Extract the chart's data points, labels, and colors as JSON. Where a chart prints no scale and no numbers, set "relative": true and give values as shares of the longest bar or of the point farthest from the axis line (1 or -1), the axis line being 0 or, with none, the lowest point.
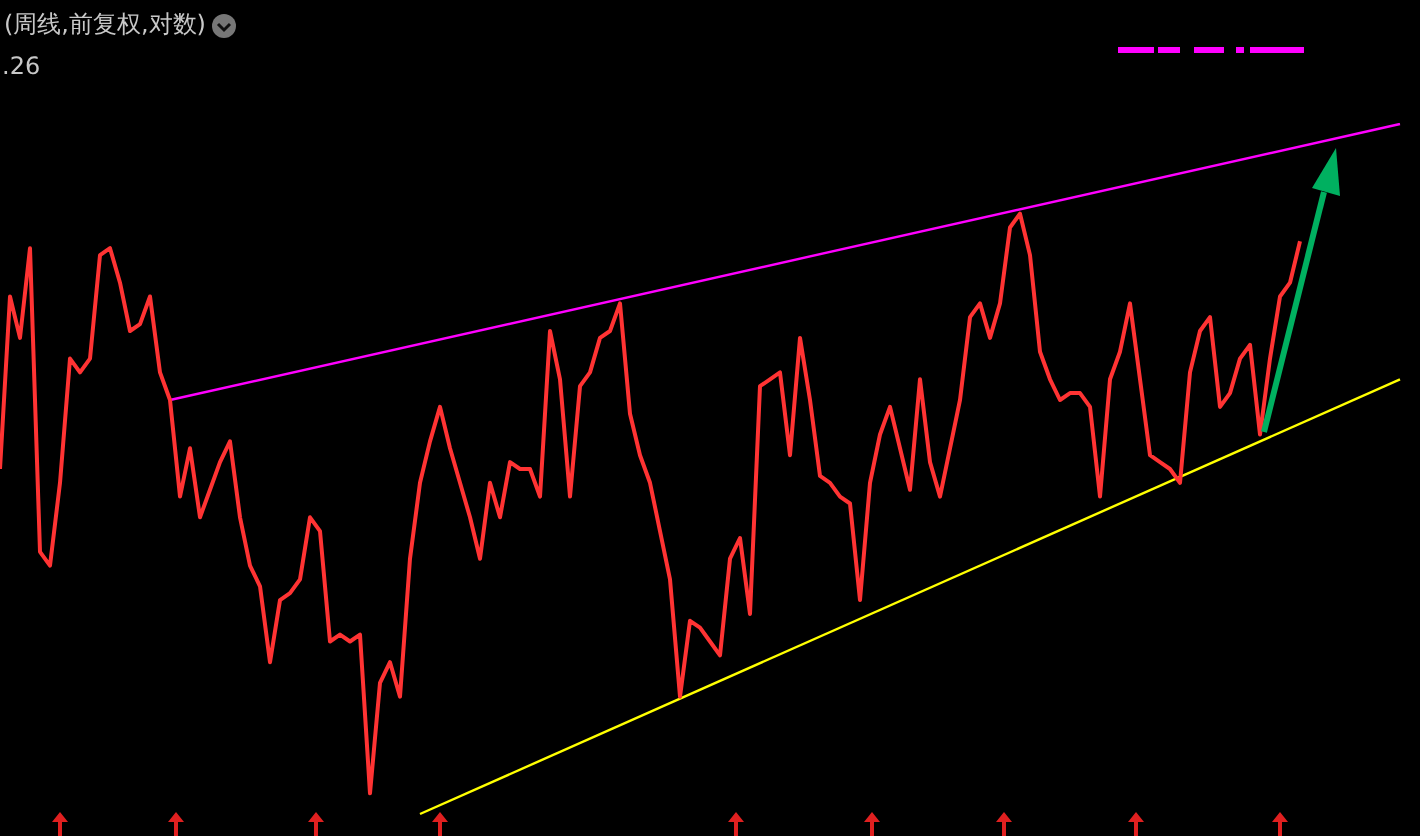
{
  "chart_data": {
    "type": "line",
    "title": "(周线,前复权,对数)",
    "annotations": [
      ".26"
    ],
    "relative": true,
    "legend": false,
    "marker": "none",
    "categories": [
      null,
      null,
      null,
      null,
      null,
      null,
      null,
      null,
      null,
      null,
      null,
      null,
      null,
      null,
      null,
      null,
      null,
      null,
      null,
      null,
      null,
      null,
      null,
      null,
      null,
      null,
      null,
      null,
      null,
      null,
      null,
      null,
      null,
      null,
      null,
      null,
      null,
      null,
      null,
      null,
      null,
      null,
      null,
      null,
      null,
      null,
      null,
      null,
      null,
      null,
      null,
      null,
      null,
      null,
      null,
      null,
      null,
      null,
      null,
      null,
      null,
      null,
      null,
      null,
      null,
      null,
      null,
      null,
      null,
      null,
      null,
      null,
      null,
      null,
      null,
      null,
      null,
      null,
      null,
      null,
      null,
      null,
      null,
      null,
      null,
      null,
      null,
      null,
      null,
      null,
      null,
      null,
      null,
      null,
      null,
      null,
      null,
      null,
      null,
      null,
      null,
      null,
      null,
      null,
      null,
      null,
      null,
      null,
      null,
      null,
      null,
      null,
      null,
      null,
      null,
      null,
      null,
      null,
      null,
      null,
      null,
      null,
      null,
      null,
      null,
      null,
      null,
      null,
      null,
      null,
      null,
      null,
      null,
      null,
      null,
      null,
      null,
      null,
      null,
      null,
      null
    ],
    "series": [
      {
        "color": "#ff3333",
        "values": [
          0.5,
          0.75,
          0.69,
          0.82,
          0.38,
          0.36,
          0.48,
          0.66,
          0.64,
          0.66,
          0.81,
          0.82,
          0.77,
          0.7,
          0.71,
          0.75,
          0.64,
          0.6,
          0.46,
          0.53,
          0.43,
          0.47,
          0.51,
          0.54,
          0.43,
          0.36,
          0.33,
          0.22,
          0.31,
          0.32,
          0.34,
          0.43,
          0.41,
          0.25,
          0.26,
          0.25,
          0.26,
          0.03,
          0.19,
          0.22,
          0.17,
          0.37,
          0.48,
          0.54,
          0.59,
          0.53,
          0.48,
          0.43,
          0.37,
          0.48,
          0.43,
          0.51,
          0.5,
          0.5,
          0.46,
          0.7,
          0.63,
          0.46,
          0.62,
          0.64,
          0.69,
          0.7,
          0.74,
          0.58,
          0.52,
          0.48,
          0.41,
          0.34,
          0.17,
          0.28,
          0.27,
          0.25,
          0.23,
          0.37,
          0.4,
          0.29,
          0.62,
          0.63,
          0.64,
          0.52,
          0.69,
          0.6,
          0.49,
          0.48,
          0.46,
          0.45,
          0.31,
          0.48,
          0.55,
          0.59,
          0.53,
          0.47,
          0.63,
          0.51,
          0.46,
          0.53,
          0.6,
          0.72,
          0.74,
          0.69,
          0.74,
          0.85,
          0.87,
          0.81,
          0.67,
          0.63,
          0.6,
          0.61,
          0.61,
          0.59,
          0.46,
          0.63,
          0.67,
          0.74,
          0.63,
          0.52,
          0.51,
          0.5,
          0.48,
          0.64,
          0.7,
          0.72,
          0.59,
          0.61,
          0.66,
          0.68,
          0.55,
          0.66,
          0.75,
          0.77,
          0.83,
          null,
          null,
          null,
          null,
          null,
          null,
          null,
          null,
          null,
          null
        ]
      },
      {
        "type": "line",
        "color": "#ff00ff",
        "values": [
          null,
          null,
          null,
          null,
          null,
          null,
          null,
          null,
          null,
          null,
          null,
          null,
          null,
          null,
          null,
          null,
          null,
          0.6,
          null,
          null,
          null,
          null,
          null,
          null,
          null,
          null,
          null,
          null,
          null,
          null,
          null,
          null,
          null,
          null,
          null,
          null,
          null,
          null,
          null,
          null,
          null,
          null,
          null,
          null,
          null,
          null,
          null,
          null,
          null,
          null,
          null,
          null,
          null,
          null,
          null,
          null,
          null,
          null,
          null,
          null,
          null,
          null,
          null,
          null,
          null,
          null,
          null,
          null,
          null,
          null,
          null,
          null,
          null,
          null,
          null,
          null,
          null,
          null,
          null,
          null,
          null,
          null,
          null,
          null,
          null,
          null,
          null,
          null,
          null,
          null,
          null,
          null,
          null,
          null,
          null,
          null,
          null,
          null,
          null,
          null,
          null,
          null,
          null,
          null,
          null,
          null,
          null,
          null,
          null,
          null,
          null,
          null,
          null,
          null,
          null,
          null,
          null,
          null,
          null,
          null,
          null,
          null,
          null,
          null,
          null,
          null,
          null,
          null,
          null,
          null,
          null,
          null,
          null,
          null,
          null,
          null,
          null,
          null,
          null,
          null,
          1.0
        ]
      },
      {
        "type": "line",
        "color": "#ffff00",
        "values": [
          null,
          null,
          null,
          null,
          null,
          null,
          null,
          null,
          null,
          null,
          null,
          null,
          null,
          null,
          null,
          null,
          null,
          null,
          null,
          null,
          null,
          null,
          null,
          null,
          null,
          null,
          null,
          null,
          null,
          null,
          null,
          null,
          null,
          null,
          null,
          null,
          null,
          null,
          null,
          null,
          null,
          null,
          0.0,
          null,
          null,
          null,
          null,
          null,
          null,
          null,
          null,
          null,
          null,
          null,
          null,
          null,
          null,
          null,
          null,
          null,
          null,
          null,
          null,
          null,
          null,
          null,
          null,
          null,
          null,
          null,
          null,
          null,
          null,
          null,
          null,
          null,
          null,
          null,
          null,
          null,
          null,
          null,
          null,
          null,
          null,
          null,
          null,
          null,
          null,
          null,
          null,
          null,
          null,
          null,
          null,
          null,
          null,
          null,
          null,
          null,
          null,
          null,
          null,
          null,
          null,
          null,
          null,
          null,
          null,
          null,
          null,
          null,
          null,
          null,
          null,
          null,
          null,
          null,
          null,
          null,
          null,
          null,
          null,
          null,
          null,
          null,
          null,
          null,
          null,
          null,
          null,
          null,
          null,
          null,
          null,
          null,
          null,
          null,
          null,
          null,
          0.63
        ]
      }
    ]
  }
}
